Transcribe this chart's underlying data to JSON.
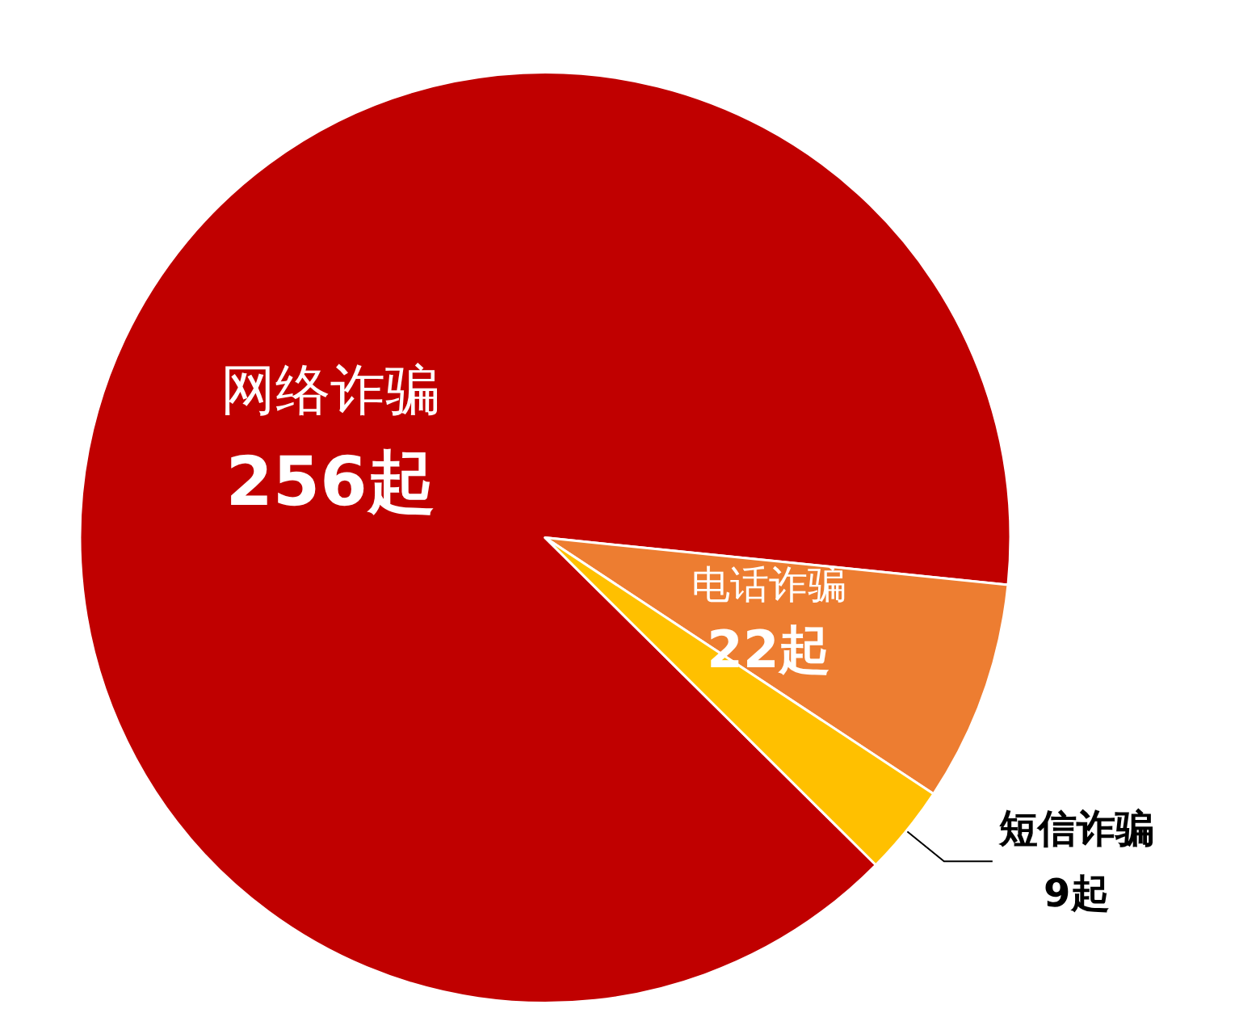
{
  "chart_data": {
    "type": "pie",
    "categories": [
      "网络诈骗",
      "电话诈骗",
      "短信诈骗"
    ],
    "values": [
      256,
      22,
      9
    ],
    "colors": [
      "#c00000",
      "#ed7d31",
      "#ffc000"
    ],
    "value_labels": [
      "256起",
      "22起",
      "9起"
    ],
    "legend": false
  }
}
